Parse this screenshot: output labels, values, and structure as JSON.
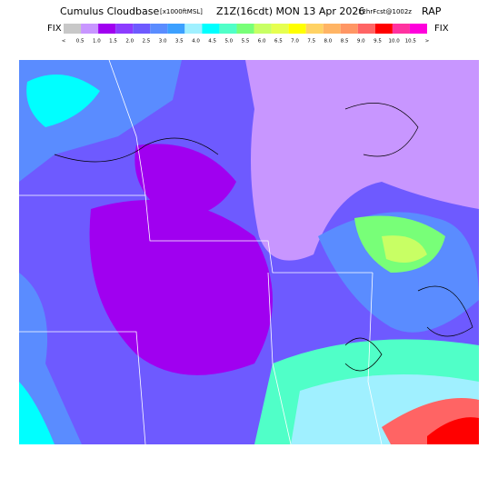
{
  "header": {
    "title": "Cumulus Cloudbase",
    "units": "[x1000ftMSL]",
    "valid": "Z1Z(16cdt) MON 13 Apr 2026",
    "forecast": "12hrFcst@1002z",
    "model": "RAP"
  },
  "legend": {
    "left_label": "FIX",
    "right_label": "FIX",
    "colors": [
      "#c8c8c8",
      "#c896ff",
      "#a000f0",
      "#8c3cff",
      "#6e5aff",
      "#5a8cff",
      "#3ca0ff",
      "#a0f0ff",
      "#00ffff",
      "#50ffc8",
      "#78ff78",
      "#c8ff64",
      "#e6ff50",
      "#ffff00",
      "#ffd264",
      "#ffb464",
      "#ff9664",
      "#ff6464",
      "#ff0000",
      "#ff32a0",
      "#ff00dc"
    ],
    "labels": [
      "<",
      "0.5",
      "1.0",
      "1.5",
      "2.0",
      "2.5",
      "3.0",
      "3.5",
      "4.0",
      "4.5",
      "5.0",
      "5.5",
      "6.0",
      "6.5",
      "7.0",
      "7.5",
      "8.0",
      "8.5",
      "9.0",
      "9.5",
      "10.0",
      "10.5",
      ">"
    ]
  }
}
